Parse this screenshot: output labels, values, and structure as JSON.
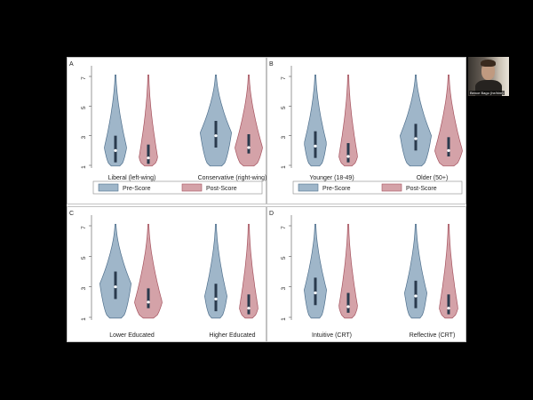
{
  "webcam": {
    "name_tag": "Bence Bago (he/him)"
  },
  "colors": {
    "pre": "#9fb6c9",
    "pre_stroke": "#4f6f8c",
    "post": "#d4a2a8",
    "post_stroke": "#a5535f",
    "box": "#2a3a4d"
  },
  "chart_data": [
    {
      "type": "violin",
      "panel": "A",
      "ylim": [
        1,
        7
      ],
      "yticks": [
        1,
        3,
        5,
        7
      ],
      "groups": [
        {
          "label": "Liberal (left-wing)",
          "pre_median": 2.0,
          "post_median": 1.5
        },
        {
          "label": "Conservative (right-wing)",
          "pre_median": 3.0,
          "post_median": 2.2
        }
      ],
      "legend": [
        "Pre-Score",
        "Post-Score"
      ]
    },
    {
      "type": "violin",
      "panel": "B",
      "ylim": [
        1,
        7
      ],
      "yticks": [
        1,
        3,
        5,
        7
      ],
      "groups": [
        {
          "label": "Younger (18-49)",
          "pre_median": 2.3,
          "post_median": 1.6
        },
        {
          "label": "Older (50+)",
          "pre_median": 2.8,
          "post_median": 2.0
        }
      ],
      "legend": [
        "Pre-Score",
        "Post-Score"
      ]
    },
    {
      "type": "violin",
      "panel": "C",
      "ylim": [
        1,
        7
      ],
      "yticks": [
        1,
        3,
        5,
        7
      ],
      "groups": [
        {
          "label": "Lower Educated",
          "pre_median": 3.0,
          "post_median": 2.0
        },
        {
          "label": "Higher Educated",
          "pre_median": 2.2,
          "post_median": 1.6
        }
      ]
    },
    {
      "type": "violin",
      "panel": "D",
      "ylim": [
        1,
        7
      ],
      "yticks": [
        1,
        3,
        5,
        7
      ],
      "groups": [
        {
          "label": "Intuitive (CRT)",
          "pre_median": 2.6,
          "post_median": 1.7
        },
        {
          "label": "Reflective (CRT)",
          "pre_median": 2.4,
          "post_median": 1.6
        }
      ]
    }
  ]
}
